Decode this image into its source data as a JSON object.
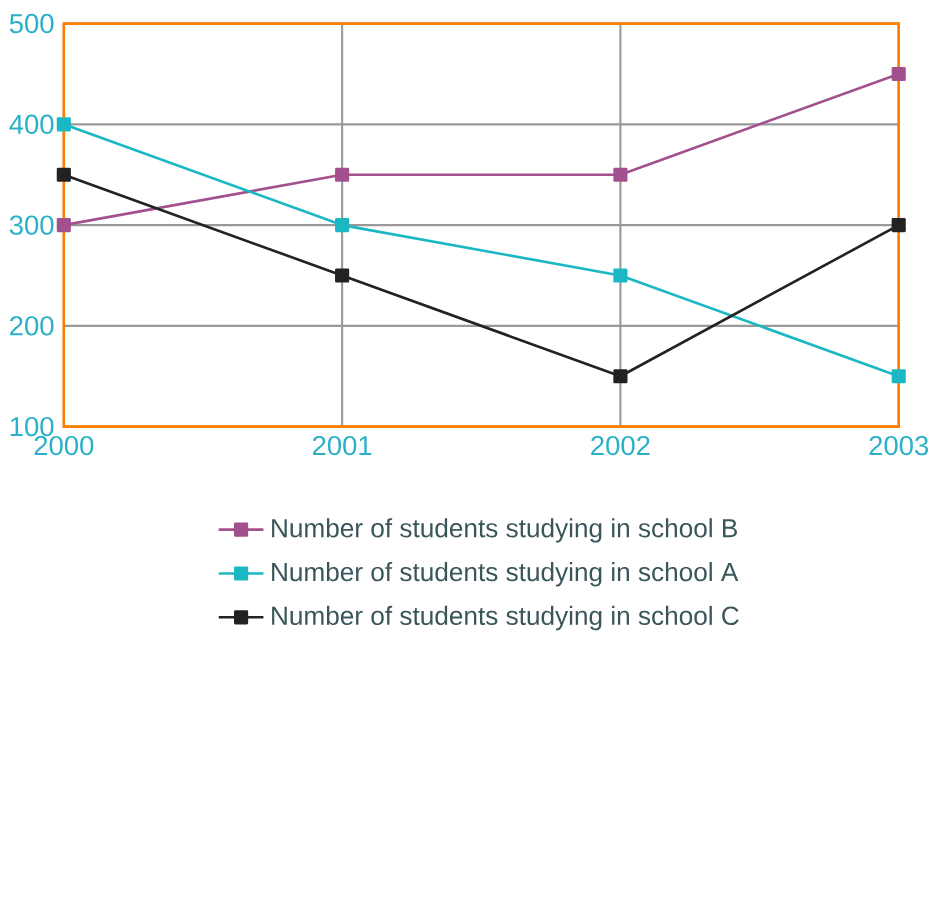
{
  "chart_data": {
    "type": "line",
    "categories": [
      "2000",
      "2001",
      "2002",
      "2003"
    ],
    "series": [
      {
        "name": "Number of students studying in school B",
        "color": "#a2508e",
        "values": [
          300,
          350,
          350,
          450
        ]
      },
      {
        "name": "Number of students studying in school A",
        "color": "#1bb8c4",
        "values": [
          400,
          300,
          250,
          150
        ]
      },
      {
        "name": "Number of students studying in school C",
        "color": "#222222",
        "values": [
          350,
          250,
          150,
          300
        ]
      }
    ],
    "ylim": [
      100,
      500
    ],
    "yticks": [
      100,
      200,
      300,
      400,
      500
    ],
    "grid": true,
    "legend": "bottom",
    "marker": "square",
    "line_style": "solid"
  }
}
